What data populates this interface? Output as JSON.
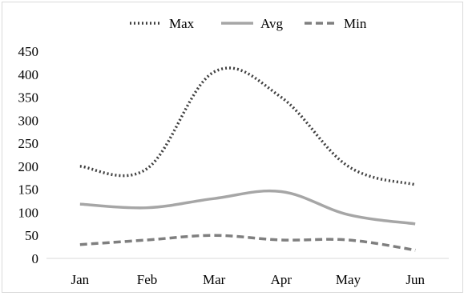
{
  "chart_data": {
    "type": "line",
    "categories": [
      "Jan",
      "Feb",
      "Mar",
      "Apr",
      "May",
      "Jun"
    ],
    "y_ticks": [
      "0",
      "50",
      "100",
      "150",
      "200",
      "250",
      "300",
      "350",
      "400",
      "450"
    ],
    "ylim": [
      0,
      450
    ],
    "grid": false,
    "legend_position": "top",
    "series": [
      {
        "name": "Max",
        "values": [
          200,
          195,
          405,
          350,
          200,
          160
        ],
        "color": "#404040",
        "style": "dotted"
      },
      {
        "name": "Avg",
        "values": [
          118,
          110,
          130,
          145,
          95,
          75
        ],
        "color": "#a6a6a6",
        "style": "solid"
      },
      {
        "name": "Min",
        "values": [
          30,
          40,
          50,
          40,
          40,
          18
        ],
        "color": "#7f7f7f",
        "style": "dashed"
      }
    ]
  }
}
